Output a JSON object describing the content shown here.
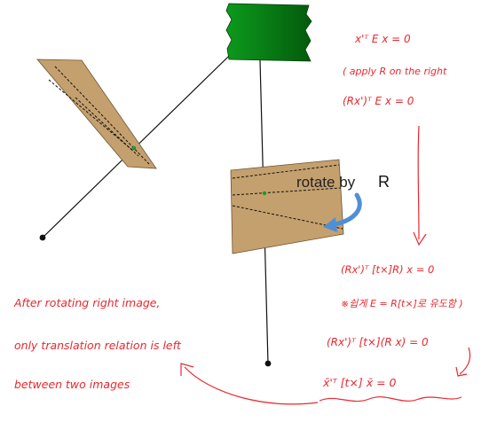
{
  "diagram": {
    "rotate_label": "rotate by",
    "rotate_symbol": "R",
    "equations": [
      "x'ᵀ E x = 0",
      "( apply R on the right",
      "(Rx')ᵀ E x = 0",
      "(Rx')ᵀ [t×]R) x = 0",
      "※쉽게 E = R[t×]로 유도함 )",
      "(Rx')ᵀ [t×](R x) = 0",
      "x̄'ᵀ [t×] x̄ = 0"
    ],
    "note_lines": [
      "After rotating right image,",
      "only translation relation is left",
      "between two images"
    ]
  },
  "colors": {
    "annotation": "#e8282e",
    "image_plane": "#c4a06e",
    "camera": "#0a7a12",
    "arrow": "#4f8fd6",
    "line": "#111111"
  }
}
